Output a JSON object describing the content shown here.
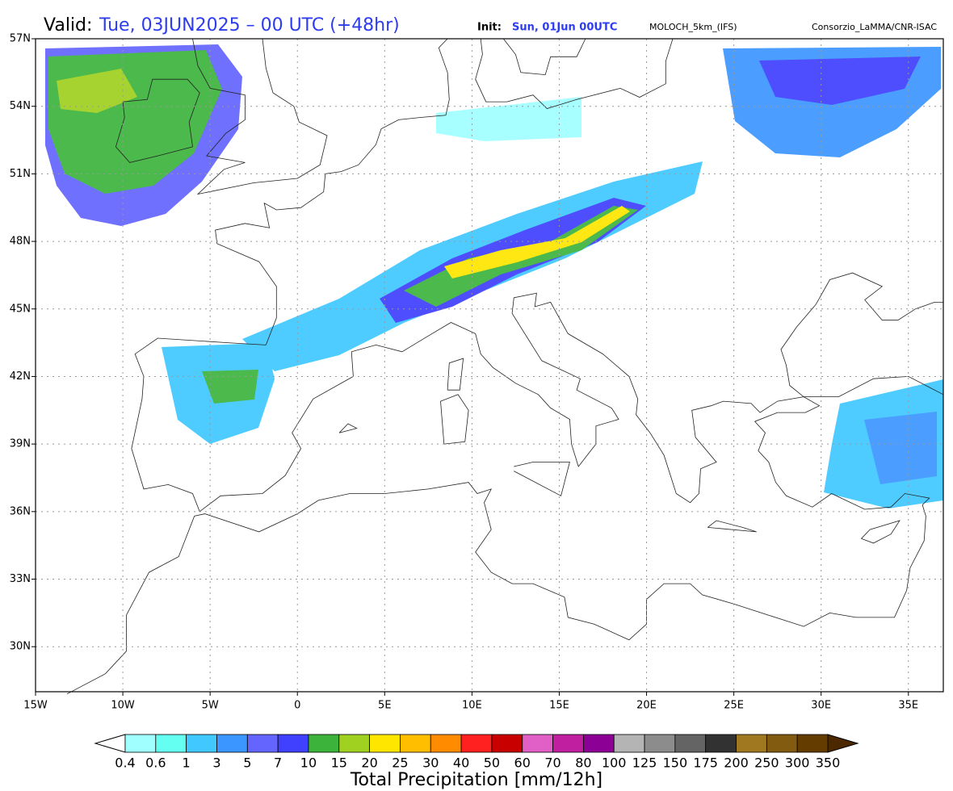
{
  "header": {
    "valid_label": "Valid:",
    "valid": "Tue, 03JUN2025 – 00 UTC (+48hr)",
    "init_label": "Init:",
    "init": "Sun, 01Jun 00UTC",
    "model": "MOLOCH_5km_(IFS)",
    "credit": "Consorzio_LaMMA/CNR-ISAC"
  },
  "map": {
    "lon_range": [
      -15,
      37
    ],
    "lat_range": [
      28,
      57
    ],
    "lat_ticks": [
      {
        "value": 57,
        "label": "57N"
      },
      {
        "value": 54,
        "label": "54N"
      },
      {
        "value": 51,
        "label": "51N"
      },
      {
        "value": 48,
        "label": "48N"
      },
      {
        "value": 45,
        "label": "45N"
      },
      {
        "value": 42,
        "label": "42N"
      },
      {
        "value": 39,
        "label": "39N"
      },
      {
        "value": 36,
        "label": "36N"
      },
      {
        "value": 33,
        "label": "33N"
      },
      {
        "value": 30,
        "label": "30N"
      }
    ],
    "lon_ticks": [
      {
        "value": -15,
        "label": "15W"
      },
      {
        "value": -10,
        "label": "10W"
      },
      {
        "value": -5,
        "label": "5W"
      },
      0,
      {
        "value": 5,
        "label": "5E"
      },
      {
        "value": 10,
        "label": "10E"
      },
      {
        "value": 15,
        "label": "15E"
      },
      {
        "value": 20,
        "label": "20E"
      },
      {
        "value": 25,
        "label": "25E"
      },
      {
        "value": 30,
        "label": "30E"
      },
      {
        "value": 35,
        "label": "35E"
      }
    ]
  },
  "colorbar": {
    "title": "Total Precipitation [mm/12h]",
    "labels": [
      "0.4",
      "0.6",
      "1",
      "3",
      "5",
      "7",
      "10",
      "15",
      "20",
      "25",
      "30",
      "40",
      "50",
      "60",
      "70",
      "80",
      "100",
      "125",
      "150",
      "175",
      "200",
      "250",
      "300",
      "350"
    ],
    "colors": [
      "#a0ffff",
      "#64fff0",
      "#40c8ff",
      "#3c96ff",
      "#6464ff",
      "#4040ff",
      "#3cb43c",
      "#a0d020",
      "#ffe600",
      "#ffbe00",
      "#ff8c00",
      "#ff2020",
      "#c80000",
      "#e060c8",
      "#c020a0",
      "#8c0096",
      "#b4b4b4",
      "#8c8c8c",
      "#646464",
      "#323232",
      "#a07820",
      "#825a10",
      "#643c00"
    ],
    "under_color": "#ffffff",
    "over_color": "#4b2800"
  }
}
